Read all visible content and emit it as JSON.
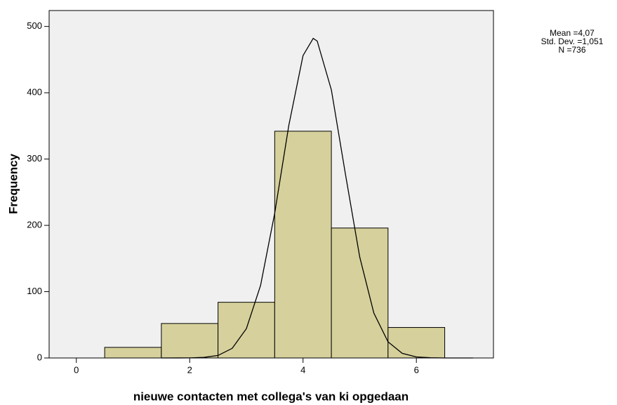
{
  "chart_data": {
    "type": "histogram",
    "xlabel": "nieuwe contacten met collega's van ki opgedaan",
    "ylabel": "Frequency",
    "bins": [
      0.5,
      1.5,
      2.5,
      3.5,
      4.5,
      5.5,
      6.5
    ],
    "values": [
      16,
      52,
      84,
      342,
      196,
      46
    ],
    "color": "#d6d09c",
    "curve": {
      "x": [
        1.5,
        2.0,
        2.25,
        2.5,
        2.75,
        3.0,
        3.25,
        3.5,
        3.75,
        4.0,
        4.18,
        4.25,
        4.5,
        4.75,
        5.0,
        5.25,
        5.5,
        5.75,
        6.0,
        6.25,
        6.5,
        7.0
      ],
      "y": [
        0,
        0.1,
        0.8,
        3.8,
        14.5,
        44.2,
        109.4,
        218.1,
        351,
        456,
        482,
        478,
        404.3,
        276.1,
        152.2,
        67.7,
        24.3,
        7,
        1.6,
        0.3,
        0.05,
        0
      ]
    },
    "annotations": [
      "Mean =4,07",
      "Std. Dev. =1,051",
      "N =736"
    ],
    "xlim": [
      -0.48,
      7.36
    ],
    "ylim": [
      0,
      524
    ],
    "xticks": [
      0,
      2,
      4,
      6
    ],
    "yticks": [
      0,
      100,
      200,
      300,
      400,
      500
    ]
  }
}
